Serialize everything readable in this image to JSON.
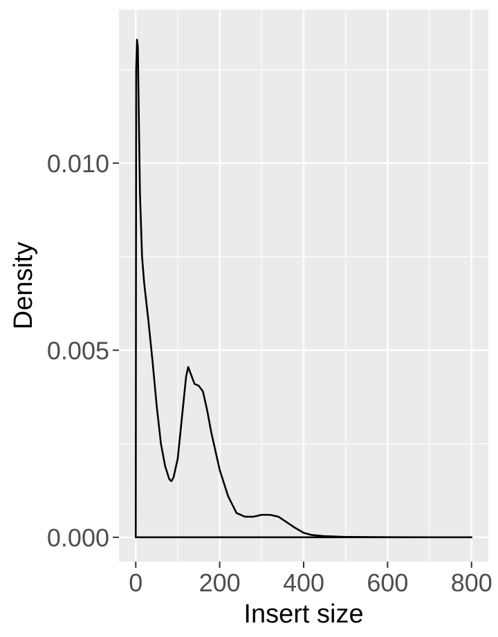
{
  "chart_data": {
    "type": "line",
    "xlabel": "Insert size",
    "ylabel": "Density",
    "xlim": [
      -40,
      840
    ],
    "ylim": [
      -0.00065,
      0.0141
    ],
    "x_major_ticks": [
      0,
      200,
      400,
      600,
      800
    ],
    "x_tick_labels": [
      "0",
      "200",
      "400",
      "600",
      "800"
    ],
    "x_minor_ticks": [
      100,
      300,
      500,
      700
    ],
    "y_major_ticks": [
      0.0,
      0.005,
      0.01
    ],
    "y_tick_labels": [
      "0.000",
      "0.005",
      "0.010"
    ],
    "y_minor_ticks": [
      0.0025,
      0.0075,
      0.0125
    ],
    "grid": true,
    "legend": "none",
    "colors": {
      "panel_background": "#ebebeb",
      "grid": "#ffffff",
      "line": "#000000",
      "tick_text": "#4d4d4d",
      "tick_mark": "#333333"
    },
    "series": [
      {
        "x": [
          0,
          1,
          3,
          5,
          7,
          10,
          15,
          20,
          30,
          40,
          50,
          60,
          70,
          80,
          85,
          90,
          100,
          110,
          120,
          125,
          130,
          140,
          150,
          160,
          170,
          180,
          200,
          220,
          240,
          260,
          280,
          300,
          320,
          340,
          360,
          380,
          400,
          420,
          450,
          500,
          600,
          700,
          800
        ],
        "y": [
          0,
          0.0125,
          0.0133,
          0.0131,
          0.0115,
          0.0092,
          0.0075,
          0.0068,
          0.0058,
          0.0047,
          0.0035,
          0.0025,
          0.0019,
          0.00155,
          0.0015,
          0.0016,
          0.0021,
          0.0032,
          0.0043,
          0.00455,
          0.0044,
          0.0041,
          0.00405,
          0.0039,
          0.0034,
          0.0028,
          0.0018,
          0.0011,
          0.00065,
          0.00055,
          0.00055,
          0.0006,
          0.0006,
          0.00055,
          0.0004,
          0.00025,
          0.00012,
          6e-05,
          3e-05,
          1e-05,
          4e-06,
          1e-06,
          0
        ]
      }
    ]
  }
}
